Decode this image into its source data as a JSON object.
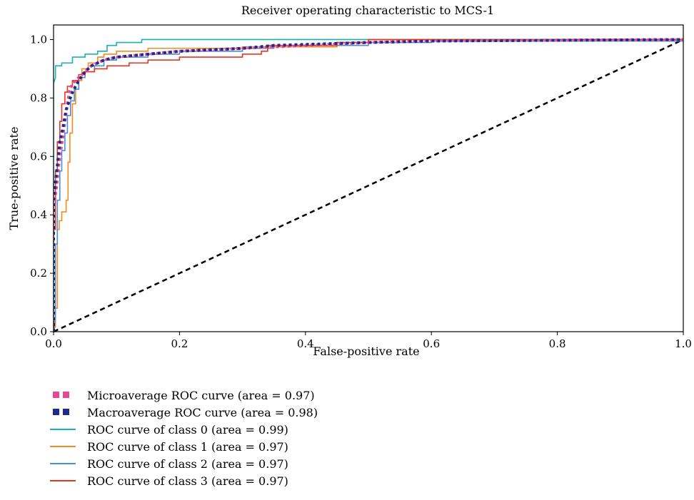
{
  "chart_data": {
    "type": "line",
    "title": "Receiver operating characteristic to MCS-1",
    "xlabel": "False-positive rate",
    "ylabel": "True-positive rate",
    "xlim": [
      0.0,
      1.0
    ],
    "ylim": [
      0.0,
      1.05
    ],
    "x_ticks": [
      "0.0",
      "0.2",
      "0.4",
      "0.6",
      "0.8",
      "1.0"
    ],
    "y_ticks": [
      "0.0",
      "0.2",
      "0.4",
      "0.6",
      "0.8",
      "1.0"
    ],
    "grid": false,
    "legend_position": "below",
    "series": [
      {
        "name": "Microaverage ROC curve (area = 0.97)",
        "color": "#e8488f",
        "style": "dotted",
        "points": [
          [
            0,
            0.0
          ],
          [
            0.0,
            0.42
          ],
          [
            0.005,
            0.5
          ],
          [
            0.01,
            0.6
          ],
          [
            0.015,
            0.67
          ],
          [
            0.02,
            0.75
          ],
          [
            0.025,
            0.82
          ],
          [
            0.03,
            0.85
          ],
          [
            0.04,
            0.87
          ],
          [
            0.05,
            0.89
          ],
          [
            0.06,
            0.91
          ],
          [
            0.08,
            0.93
          ],
          [
            0.1,
            0.94
          ],
          [
            0.15,
            0.95
          ],
          [
            0.2,
            0.96
          ],
          [
            0.3,
            0.97
          ],
          [
            0.4,
            0.98
          ],
          [
            0.5,
            0.99
          ],
          [
            0.6,
            0.995
          ],
          [
            0.8,
            0.998
          ],
          [
            1.0,
            1.0
          ]
        ]
      },
      {
        "name": "Macroaverage ROC curve (area = 0.98)",
        "color": "#1f2a8c",
        "style": "dotted",
        "points": [
          [
            0,
            0.0
          ],
          [
            0.0,
            0.45
          ],
          [
            0.005,
            0.55
          ],
          [
            0.01,
            0.65
          ],
          [
            0.015,
            0.7
          ],
          [
            0.02,
            0.76
          ],
          [
            0.03,
            0.82
          ],
          [
            0.04,
            0.86
          ],
          [
            0.05,
            0.89
          ],
          [
            0.06,
            0.91
          ],
          [
            0.08,
            0.93
          ],
          [
            0.1,
            0.94
          ],
          [
            0.15,
            0.95
          ],
          [
            0.2,
            0.96
          ],
          [
            0.3,
            0.97
          ],
          [
            0.35,
            0.98
          ],
          [
            0.5,
            0.99
          ],
          [
            0.6,
            0.995
          ],
          [
            1.0,
            1.0
          ]
        ]
      },
      {
        "name": "ROC curve of class 0 (area = 0.99)",
        "color": "#17b3b0",
        "style": "solid",
        "points": [
          [
            0,
            0.0
          ],
          [
            0.0,
            0.85
          ],
          [
            0.003,
            0.87
          ],
          [
            0.003,
            0.91
          ],
          [
            0.013,
            0.91
          ],
          [
            0.013,
            0.92
          ],
          [
            0.03,
            0.92
          ],
          [
            0.03,
            0.94
          ],
          [
            0.05,
            0.94
          ],
          [
            0.05,
            0.95
          ],
          [
            0.07,
            0.95
          ],
          [
            0.07,
            0.96
          ],
          [
            0.085,
            0.96
          ],
          [
            0.085,
            0.98
          ],
          [
            0.1,
            0.98
          ],
          [
            0.1,
            0.99
          ],
          [
            0.14,
            0.99
          ],
          [
            0.14,
            1.0
          ],
          [
            1.0,
            1.0
          ]
        ]
      },
      {
        "name": "ROC curve of class 1 (area = 0.97)",
        "color": "#f58a1f",
        "style": "solid",
        "points": [
          [
            0,
            0.0
          ],
          [
            0.003,
            0.02
          ],
          [
            0.003,
            0.08
          ],
          [
            0.006,
            0.08
          ],
          [
            0.006,
            0.35
          ],
          [
            0.009,
            0.35
          ],
          [
            0.009,
            0.38
          ],
          [
            0.013,
            0.38
          ],
          [
            0.013,
            0.41
          ],
          [
            0.02,
            0.41
          ],
          [
            0.02,
            0.45
          ],
          [
            0.023,
            0.45
          ],
          [
            0.023,
            0.58
          ],
          [
            0.026,
            0.58
          ],
          [
            0.026,
            0.68
          ],
          [
            0.03,
            0.68
          ],
          [
            0.03,
            0.78
          ],
          [
            0.035,
            0.78
          ],
          [
            0.035,
            0.83
          ],
          [
            0.04,
            0.83
          ],
          [
            0.04,
            0.86
          ],
          [
            0.045,
            0.86
          ],
          [
            0.045,
            0.9
          ],
          [
            0.055,
            0.9
          ],
          [
            0.055,
            0.92
          ],
          [
            0.07,
            0.92
          ],
          [
            0.07,
            0.94
          ],
          [
            0.08,
            0.94
          ],
          [
            0.08,
            0.95
          ],
          [
            0.1,
            0.95
          ],
          [
            0.1,
            0.96
          ],
          [
            0.15,
            0.96
          ],
          [
            0.15,
            0.97
          ],
          [
            0.3,
            0.97
          ],
          [
            0.3,
            0.975
          ],
          [
            0.45,
            0.975
          ],
          [
            0.45,
            0.99
          ],
          [
            0.5,
            0.99
          ],
          [
            0.5,
            1.0
          ],
          [
            1.0,
            1.0
          ]
        ]
      },
      {
        "name": "ROC curve of class 2 (area = 0.97)",
        "color": "#4a8ee0",
        "style": "solid",
        "points": [
          [
            0,
            0.0
          ],
          [
            0.003,
            0.05
          ],
          [
            0.003,
            0.3
          ],
          [
            0.006,
            0.3
          ],
          [
            0.006,
            0.45
          ],
          [
            0.01,
            0.45
          ],
          [
            0.01,
            0.55
          ],
          [
            0.013,
            0.55
          ],
          [
            0.013,
            0.62
          ],
          [
            0.018,
            0.62
          ],
          [
            0.018,
            0.68
          ],
          [
            0.022,
            0.68
          ],
          [
            0.022,
            0.74
          ],
          [
            0.027,
            0.74
          ],
          [
            0.027,
            0.79
          ],
          [
            0.033,
            0.79
          ],
          [
            0.033,
            0.83
          ],
          [
            0.04,
            0.83
          ],
          [
            0.04,
            0.87
          ],
          [
            0.05,
            0.87
          ],
          [
            0.05,
            0.89
          ],
          [
            0.065,
            0.89
          ],
          [
            0.065,
            0.91
          ],
          [
            0.08,
            0.91
          ],
          [
            0.08,
            0.93
          ],
          [
            0.1,
            0.93
          ],
          [
            0.1,
            0.94
          ],
          [
            0.15,
            0.94
          ],
          [
            0.15,
            0.95
          ],
          [
            0.2,
            0.95
          ],
          [
            0.2,
            0.96
          ],
          [
            0.3,
            0.96
          ],
          [
            0.3,
            0.97
          ],
          [
            0.35,
            0.97
          ],
          [
            0.35,
            0.98
          ],
          [
            0.5,
            0.98
          ],
          [
            0.5,
            0.99
          ],
          [
            0.6,
            0.99
          ],
          [
            0.6,
            0.995
          ],
          [
            1.0,
            0.995
          ],
          [
            1.0,
            1.0
          ]
        ]
      },
      {
        "name": "ROC curve of class 3 (area = 0.97)",
        "color": "#e8361e",
        "style": "solid",
        "points": [
          [
            0,
            0.0
          ],
          [
            0.0,
            0.35
          ],
          [
            0.003,
            0.35
          ],
          [
            0.003,
            0.55
          ],
          [
            0.006,
            0.55
          ],
          [
            0.006,
            0.65
          ],
          [
            0.01,
            0.65
          ],
          [
            0.01,
            0.72
          ],
          [
            0.013,
            0.72
          ],
          [
            0.013,
            0.78
          ],
          [
            0.018,
            0.78
          ],
          [
            0.018,
            0.82
          ],
          [
            0.022,
            0.82
          ],
          [
            0.022,
            0.84
          ],
          [
            0.03,
            0.84
          ],
          [
            0.03,
            0.86
          ],
          [
            0.04,
            0.86
          ],
          [
            0.04,
            0.88
          ],
          [
            0.05,
            0.88
          ],
          [
            0.05,
            0.89
          ],
          [
            0.065,
            0.89
          ],
          [
            0.065,
            0.9
          ],
          [
            0.085,
            0.9
          ],
          [
            0.085,
            0.91
          ],
          [
            0.12,
            0.91
          ],
          [
            0.12,
            0.92
          ],
          [
            0.15,
            0.92
          ],
          [
            0.15,
            0.93
          ],
          [
            0.2,
            0.93
          ],
          [
            0.2,
            0.94
          ],
          [
            0.3,
            0.94
          ],
          [
            0.3,
            0.95
          ],
          [
            0.33,
            0.95
          ],
          [
            0.33,
            0.96
          ],
          [
            0.34,
            0.96
          ],
          [
            0.34,
            0.98
          ],
          [
            0.45,
            0.98
          ],
          [
            0.45,
            0.99
          ],
          [
            0.5,
            0.99
          ],
          [
            0.5,
            1.0
          ],
          [
            1.0,
            1.0
          ]
        ]
      },
      {
        "name": "",
        "color": "#000000",
        "style": "dashed",
        "points": [
          [
            0,
            0
          ],
          [
            1,
            1
          ]
        ]
      }
    ]
  }
}
